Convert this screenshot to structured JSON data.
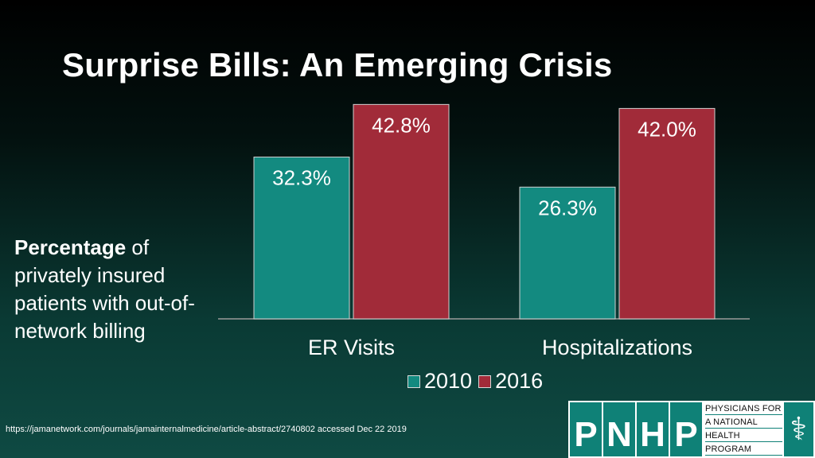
{
  "title": "Surprise Bills: An Emerging Crisis",
  "side_text": {
    "bold": "Percentage",
    "rest": " of privately insured patients with out-of-network billing"
  },
  "footer_url": "https://jamanetwork.com/journals/jamainternalmedicine/article-abstract/2740802 accessed Dec 22 2019",
  "logo": {
    "letters": [
      "P",
      "N",
      "H",
      "P"
    ],
    "words": [
      "PHYSICIANS FOR",
      "A NATIONAL",
      "HEALTH",
      "PROGRAM"
    ],
    "icon": "caduceus-icon"
  },
  "chart_data": {
    "type": "bar",
    "categories": [
      "ER Visits",
      "Hospitalizations"
    ],
    "series": [
      {
        "name": "2010",
        "values": [
          32.3,
          26.3
        ],
        "labels": [
          "32.3%",
          "26.3%"
        ],
        "color": "#138a80"
      },
      {
        "name": "2016",
        "values": [
          42.8,
          42.0
        ],
        "labels": [
          "42.8%",
          "42.0%"
        ],
        "color": "#a12b39"
      }
    ],
    "ylim": [
      0,
      50
    ],
    "legend_position": "bottom",
    "grid": false
  }
}
